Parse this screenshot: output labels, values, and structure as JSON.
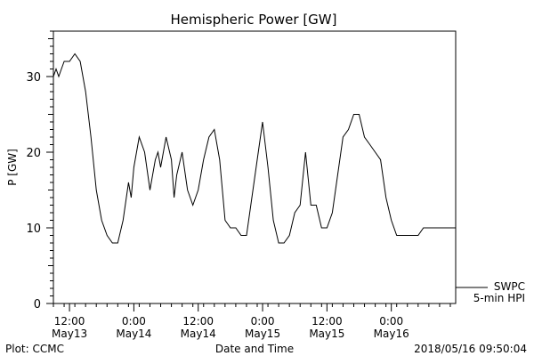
{
  "chart_data": {
    "type": "line",
    "title": "Hemispheric Power [GW]",
    "xlabel": "Date and Time",
    "ylabel": "P [GW]",
    "ylim": [
      0,
      36
    ],
    "yticks": [
      0,
      10,
      20,
      30
    ],
    "xlim": [
      "2018-05-13 09:00",
      "2018-05-16 12:00"
    ],
    "xticks": [
      {
        "t": "2018-05-13 12:00",
        "line1": "12:00",
        "line2": "May13"
      },
      {
        "t": "2018-05-14 00:00",
        "line1": "0:00",
        "line2": "May14"
      },
      {
        "t": "2018-05-14 12:00",
        "line1": "12:00",
        "line2": "May14"
      },
      {
        "t": "2018-05-15 00:00",
        "line1": "0:00",
        "line2": "May15"
      },
      {
        "t": "2018-05-15 12:00",
        "line1": "12:00",
        "line2": "May15"
      },
      {
        "t": "2018-05-16 00:00",
        "line1": "0:00",
        "line2": "May16"
      }
    ],
    "grid": false,
    "series": [
      {
        "name": "SWPC 5-min HPI",
        "color": "#000000",
        "points": [
          [
            "2018-05-13 09:00",
            30
          ],
          [
            "2018-05-13 09:30",
            31
          ],
          [
            "2018-05-13 10:00",
            30
          ],
          [
            "2018-05-13 10:30",
            31
          ],
          [
            "2018-05-13 11:00",
            32
          ],
          [
            "2018-05-13 12:00",
            32
          ],
          [
            "2018-05-13 13:00",
            33
          ],
          [
            "2018-05-13 14:00",
            32
          ],
          [
            "2018-05-13 15:00",
            28
          ],
          [
            "2018-05-13 16:00",
            22
          ],
          [
            "2018-05-13 17:00",
            15
          ],
          [
            "2018-05-13 18:00",
            11
          ],
          [
            "2018-05-13 19:00",
            9
          ],
          [
            "2018-05-13 20:00",
            8
          ],
          [
            "2018-05-13 21:00",
            8
          ],
          [
            "2018-05-13 22:00",
            11
          ],
          [
            "2018-05-13 23:00",
            16
          ],
          [
            "2018-05-13 23:30",
            14
          ],
          [
            "2018-05-14 00:00",
            18
          ],
          [
            "2018-05-14 01:00",
            22
          ],
          [
            "2018-05-14 02:00",
            20
          ],
          [
            "2018-05-14 03:00",
            15
          ],
          [
            "2018-05-14 04:00",
            19
          ],
          [
            "2018-05-14 04:30",
            20
          ],
          [
            "2018-05-14 05:00",
            18
          ],
          [
            "2018-05-14 06:00",
            22
          ],
          [
            "2018-05-14 07:00",
            19
          ],
          [
            "2018-05-14 07:30",
            14
          ],
          [
            "2018-05-14 08:00",
            17
          ],
          [
            "2018-05-14 09:00",
            20
          ],
          [
            "2018-05-14 10:00",
            15
          ],
          [
            "2018-05-14 11:00",
            13
          ],
          [
            "2018-05-14 12:00",
            15
          ],
          [
            "2018-05-14 13:00",
            19
          ],
          [
            "2018-05-14 14:00",
            22
          ],
          [
            "2018-05-14 15:00",
            23
          ],
          [
            "2018-05-14 16:00",
            19
          ],
          [
            "2018-05-14 17:00",
            11
          ],
          [
            "2018-05-14 18:00",
            10
          ],
          [
            "2018-05-14 19:00",
            10
          ],
          [
            "2018-05-14 20:00",
            9
          ],
          [
            "2018-05-14 21:00",
            9
          ],
          [
            "2018-05-14 22:00",
            14
          ],
          [
            "2018-05-14 23:00",
            19
          ],
          [
            "2018-05-15 00:00",
            24
          ],
          [
            "2018-05-15 01:00",
            18
          ],
          [
            "2018-05-15 02:00",
            11
          ],
          [
            "2018-05-15 03:00",
            8
          ],
          [
            "2018-05-15 04:00",
            8
          ],
          [
            "2018-05-15 05:00",
            9
          ],
          [
            "2018-05-15 06:00",
            12
          ],
          [
            "2018-05-15 07:00",
            13
          ],
          [
            "2018-05-15 08:00",
            20
          ],
          [
            "2018-05-15 09:00",
            13
          ],
          [
            "2018-05-15 10:00",
            13
          ],
          [
            "2018-05-15 11:00",
            10
          ],
          [
            "2018-05-15 12:00",
            10
          ],
          [
            "2018-05-15 13:00",
            12
          ],
          [
            "2018-05-15 14:00",
            17
          ],
          [
            "2018-05-15 15:00",
            22
          ],
          [
            "2018-05-15 16:00",
            23
          ],
          [
            "2018-05-15 17:00",
            25
          ],
          [
            "2018-05-15 18:00",
            25
          ],
          [
            "2018-05-15 19:00",
            22
          ],
          [
            "2018-05-15 20:00",
            21
          ],
          [
            "2018-05-15 21:00",
            20
          ],
          [
            "2018-05-15 22:00",
            19
          ],
          [
            "2018-05-15 23:00",
            14
          ],
          [
            "2018-05-16 00:00",
            11
          ],
          [
            "2018-05-16 01:00",
            9
          ],
          [
            "2018-05-16 02:00",
            9
          ],
          [
            "2018-05-16 03:00",
            9
          ],
          [
            "2018-05-16 04:00",
            9
          ],
          [
            "2018-05-16 05:00",
            9
          ],
          [
            "2018-05-16 06:00",
            10
          ],
          [
            "2018-05-16 07:00",
            10
          ],
          [
            "2018-05-16 08:00",
            10
          ],
          [
            "2018-05-16 09:00",
            10
          ],
          [
            "2018-05-16 09:50",
            10
          ]
        ]
      }
    ]
  },
  "legend": {
    "placement": "bottom-right",
    "line1": "SWPC",
    "line2": "5-min HPI"
  },
  "footer": {
    "left": "Plot: CCMC",
    "center": "Date and Time",
    "right": "2018/05/16 09:50:04"
  }
}
